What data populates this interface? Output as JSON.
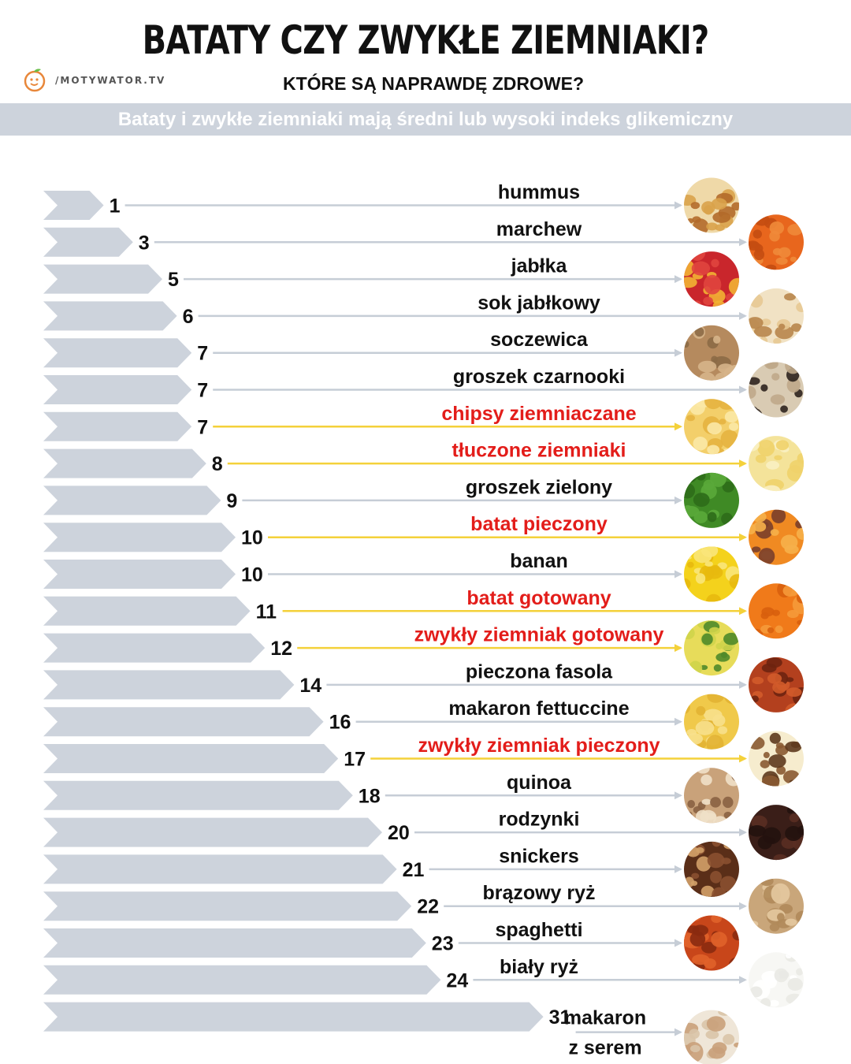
{
  "header": {
    "title": "BATATY CZY ZWYKŁE ZIEMNIAKI?",
    "subtitle": "KTÓRE SĄ NAPRAWDĘ ZDROWE?",
    "logo_text": "/MOTYWATOR.TV",
    "banner": "Bataty i zwykłe ziemniaki mają średni lub wysoki indeks glikemiczny"
  },
  "colors": {
    "bar": "#cdd3dc",
    "line_gray": "#c6cdd6",
    "line_potato": "#f4d13a",
    "label_default": "#111111",
    "label_potato": "#e31d1a",
    "banner_bg": "#cdd3dc"
  },
  "chart_data": {
    "type": "bar",
    "orientation": "horizontal",
    "title": "BATATY CZY ZWYKŁE ZIEMNIAKI?",
    "xlabel": "",
    "ylabel": "",
    "categories": [
      "hummus",
      "marchew",
      "jabłka",
      "sok jabłkowy",
      "soczewica",
      "groszek czarnooki",
      "chipsy ziemniaczane",
      "tłuczone ziemniaki",
      "groszek zielony",
      "batat pieczony",
      "banan",
      "batat gotowany",
      "zwykły ziemniak gotowany",
      "pieczona fasola",
      "makaron fettuccine",
      "zwykły ziemniak pieczony",
      "quinoa",
      "rodzynki",
      "snickers",
      "brązowy ryż",
      "spaghetti",
      "biały ryż",
      "makaron z serem"
    ],
    "label_lines": {
      "makaron z serem": [
        "makaron",
        "z serem"
      ]
    },
    "values": [
      1,
      3,
      5,
      6,
      7,
      7,
      7,
      8,
      9,
      10,
      10,
      11,
      12,
      14,
      16,
      17,
      18,
      20,
      21,
      22,
      23,
      24,
      31
    ],
    "potato": [
      false,
      false,
      false,
      false,
      false,
      false,
      true,
      true,
      false,
      true,
      false,
      true,
      true,
      false,
      false,
      true,
      false,
      false,
      false,
      false,
      false,
      false,
      false
    ],
    "icons": [
      "hummus-icon",
      "carrot-icon",
      "apple-icon",
      "apple-juice-icon",
      "lentil-icon",
      "black-eyed-pea-icon",
      "potato-chips-icon",
      "mashed-potato-icon",
      "green-pea-icon",
      "baked-sweet-potato-icon",
      "banana-icon",
      "boiled-sweet-potato-icon",
      "boiled-potato-icon",
      "baked-beans-icon",
      "fettuccine-icon",
      "baked-potato-icon",
      "quinoa-icon",
      "raisin-icon",
      "snickers-icon",
      "brown-rice-icon",
      "spaghetti-icon",
      "white-rice-icon",
      "mac-and-cheese-icon"
    ],
    "xlim": [
      0,
      31
    ]
  }
}
